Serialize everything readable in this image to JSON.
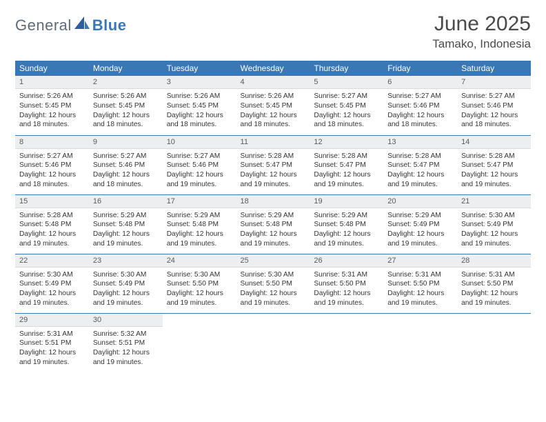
{
  "brand": {
    "part1": "General",
    "part2": "Blue"
  },
  "title": "June 2025",
  "location": "Tamako, Indonesia",
  "colors": {
    "header_bg": "#3a78b5",
    "header_fg": "#ffffff",
    "daynum_bg": "#eceeef",
    "row_border": "#3a78b5",
    "brand_gray": "#5f6b76",
    "brand_blue": "#3a78b5"
  },
  "weekdays": [
    "Sunday",
    "Monday",
    "Tuesday",
    "Wednesday",
    "Thursday",
    "Friday",
    "Saturday"
  ],
  "weeks": [
    [
      {
        "n": "1",
        "sunrise": "5:26 AM",
        "sunset": "5:45 PM",
        "daylight": "12 hours and 18 minutes."
      },
      {
        "n": "2",
        "sunrise": "5:26 AM",
        "sunset": "5:45 PM",
        "daylight": "12 hours and 18 minutes."
      },
      {
        "n": "3",
        "sunrise": "5:26 AM",
        "sunset": "5:45 PM",
        "daylight": "12 hours and 18 minutes."
      },
      {
        "n": "4",
        "sunrise": "5:26 AM",
        "sunset": "5:45 PM",
        "daylight": "12 hours and 18 minutes."
      },
      {
        "n": "5",
        "sunrise": "5:27 AM",
        "sunset": "5:45 PM",
        "daylight": "12 hours and 18 minutes."
      },
      {
        "n": "6",
        "sunrise": "5:27 AM",
        "sunset": "5:46 PM",
        "daylight": "12 hours and 18 minutes."
      },
      {
        "n": "7",
        "sunrise": "5:27 AM",
        "sunset": "5:46 PM",
        "daylight": "12 hours and 18 minutes."
      }
    ],
    [
      {
        "n": "8",
        "sunrise": "5:27 AM",
        "sunset": "5:46 PM",
        "daylight": "12 hours and 18 minutes."
      },
      {
        "n": "9",
        "sunrise": "5:27 AM",
        "sunset": "5:46 PM",
        "daylight": "12 hours and 18 minutes."
      },
      {
        "n": "10",
        "sunrise": "5:27 AM",
        "sunset": "5:46 PM",
        "daylight": "12 hours and 19 minutes."
      },
      {
        "n": "11",
        "sunrise": "5:28 AM",
        "sunset": "5:47 PM",
        "daylight": "12 hours and 19 minutes."
      },
      {
        "n": "12",
        "sunrise": "5:28 AM",
        "sunset": "5:47 PM",
        "daylight": "12 hours and 19 minutes."
      },
      {
        "n": "13",
        "sunrise": "5:28 AM",
        "sunset": "5:47 PM",
        "daylight": "12 hours and 19 minutes."
      },
      {
        "n": "14",
        "sunrise": "5:28 AM",
        "sunset": "5:47 PM",
        "daylight": "12 hours and 19 minutes."
      }
    ],
    [
      {
        "n": "15",
        "sunrise": "5:28 AM",
        "sunset": "5:48 PM",
        "daylight": "12 hours and 19 minutes."
      },
      {
        "n": "16",
        "sunrise": "5:29 AM",
        "sunset": "5:48 PM",
        "daylight": "12 hours and 19 minutes."
      },
      {
        "n": "17",
        "sunrise": "5:29 AM",
        "sunset": "5:48 PM",
        "daylight": "12 hours and 19 minutes."
      },
      {
        "n": "18",
        "sunrise": "5:29 AM",
        "sunset": "5:48 PM",
        "daylight": "12 hours and 19 minutes."
      },
      {
        "n": "19",
        "sunrise": "5:29 AM",
        "sunset": "5:48 PM",
        "daylight": "12 hours and 19 minutes."
      },
      {
        "n": "20",
        "sunrise": "5:29 AM",
        "sunset": "5:49 PM",
        "daylight": "12 hours and 19 minutes."
      },
      {
        "n": "21",
        "sunrise": "5:30 AM",
        "sunset": "5:49 PM",
        "daylight": "12 hours and 19 minutes."
      }
    ],
    [
      {
        "n": "22",
        "sunrise": "5:30 AM",
        "sunset": "5:49 PM",
        "daylight": "12 hours and 19 minutes."
      },
      {
        "n": "23",
        "sunrise": "5:30 AM",
        "sunset": "5:49 PM",
        "daylight": "12 hours and 19 minutes."
      },
      {
        "n": "24",
        "sunrise": "5:30 AM",
        "sunset": "5:50 PM",
        "daylight": "12 hours and 19 minutes."
      },
      {
        "n": "25",
        "sunrise": "5:30 AM",
        "sunset": "5:50 PM",
        "daylight": "12 hours and 19 minutes."
      },
      {
        "n": "26",
        "sunrise": "5:31 AM",
        "sunset": "5:50 PM",
        "daylight": "12 hours and 19 minutes."
      },
      {
        "n": "27",
        "sunrise": "5:31 AM",
        "sunset": "5:50 PM",
        "daylight": "12 hours and 19 minutes."
      },
      {
        "n": "28",
        "sunrise": "5:31 AM",
        "sunset": "5:50 PM",
        "daylight": "12 hours and 19 minutes."
      }
    ],
    [
      {
        "n": "29",
        "sunrise": "5:31 AM",
        "sunset": "5:51 PM",
        "daylight": "12 hours and 19 minutes."
      },
      {
        "n": "30",
        "sunrise": "5:32 AM",
        "sunset": "5:51 PM",
        "daylight": "12 hours and 19 minutes."
      },
      null,
      null,
      null,
      null,
      null
    ]
  ],
  "labels": {
    "sunrise": "Sunrise:",
    "sunset": "Sunset:",
    "daylight": "Daylight:"
  }
}
